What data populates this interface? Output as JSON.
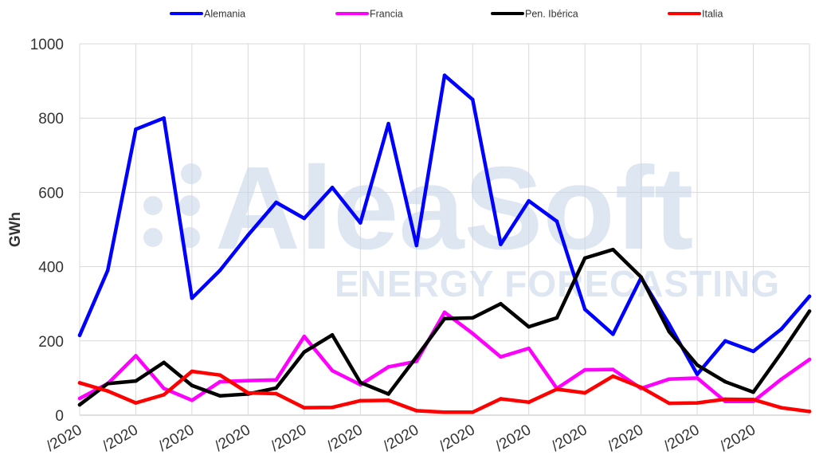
{
  "watermark": {
    "brand": "AleaSoft",
    "tagline": "ENERGY FORECASTING"
  },
  "chart_data": {
    "type": "line",
    "ylabel": "GWh",
    "xlabel": "",
    "ylim": [
      0,
      1000
    ],
    "yticks": [
      0,
      200,
      400,
      600,
      800,
      1000
    ],
    "grid": true,
    "legend_position": "top",
    "x_tick_labels": [
      "/2020",
      "/2020",
      "/2020",
      "/2020",
      "/2020",
      "/2020",
      "/2020",
      "/2020",
      "/2020",
      "/2020",
      "/2020",
      "/2020",
      "/2020"
    ],
    "series": [
      {
        "name": "Alemania",
        "color": "#0000ff",
        "values": [
          215,
          390,
          770,
          800,
          315,
          390,
          485,
          573,
          530,
          613,
          518,
          785,
          457,
          915,
          850,
          460,
          577,
          522,
          285,
          218,
          370,
          245,
          110,
          200,
          172,
          232,
          320
        ]
      },
      {
        "name": "Francia",
        "color": "#ff00ff",
        "values": [
          45,
          85,
          160,
          72,
          40,
          90,
          93,
          95,
          212,
          120,
          82,
          130,
          145,
          277,
          220,
          157,
          180,
          72,
          122,
          123,
          72,
          97,
          100,
          37,
          37,
          97,
          150
        ]
      },
      {
        "name": "Pen. Ibérica",
        "color": "#000000",
        "values": [
          28,
          85,
          92,
          142,
          80,
          52,
          57,
          73,
          170,
          216,
          88,
          57,
          157,
          260,
          262,
          300,
          238,
          262,
          423,
          446,
          372,
          225,
          135,
          90,
          62,
          168,
          280
        ]
      },
      {
        "name": "Italia",
        "color": "#ff0000",
        "values": [
          87,
          65,
          33,
          55,
          118,
          108,
          60,
          58,
          20,
          21,
          39,
          40,
          12,
          8,
          8,
          44,
          35,
          70,
          60,
          105,
          75,
          32,
          33,
          43,
          42,
          20,
          10
        ]
      }
    ]
  }
}
